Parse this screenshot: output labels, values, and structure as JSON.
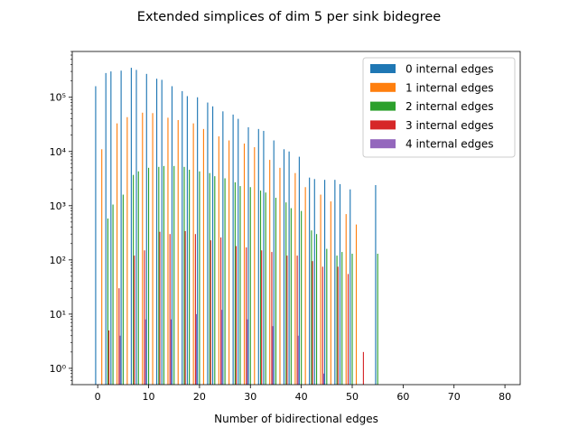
{
  "chart_data": {
    "type": "bar",
    "title": "Extended simplices of dim 5 per sink bidegree",
    "xlabel": "Number of bidirectional edges",
    "ylabel": "",
    "yscale": "log",
    "xlim": [
      -5,
      83
    ],
    "ylim": [
      0.5,
      700000
    ],
    "xticks": [
      0,
      10,
      20,
      30,
      40,
      50,
      60,
      70,
      80
    ],
    "xtick_labels": [
      "0",
      "10",
      "20",
      "30",
      "40",
      "50",
      "60",
      "70",
      "80"
    ],
    "yticks": [
      1,
      10,
      100,
      1000,
      10000,
      100000
    ],
    "ytick_labels": [
      "10⁰",
      "10¹",
      "10²",
      "10³",
      "10⁴",
      "10⁵"
    ],
    "legend_position": "top-right",
    "grid": false,
    "series": [
      {
        "name": "0 internal edges",
        "color": "#1f77b4",
        "x": [
          0,
          2,
          3,
          5,
          7,
          8,
          10,
          12,
          13,
          15,
          17,
          18,
          20,
          22,
          23,
          25,
          27,
          28,
          30,
          32,
          33,
          35,
          37,
          38,
          40,
          42,
          43,
          45,
          47,
          48,
          50,
          55
        ],
        "values": [
          160000,
          280000,
          300000,
          310000,
          350000,
          320000,
          270000,
          220000,
          210000,
          160000,
          130000,
          105000,
          100000,
          80000,
          68000,
          55000,
          48000,
          40000,
          28000,
          26000,
          24000,
          16000,
          11000,
          10000,
          8000,
          3300,
          3100,
          3000,
          3000,
          2500,
          2000,
          2400
        ]
      },
      {
        "name": "1 internal edges",
        "color": "#ff7f0e",
        "x": [
          1,
          4,
          6,
          9,
          11,
          14,
          16,
          19,
          21,
          24,
          26,
          29,
          31,
          34,
          36,
          39,
          41,
          44,
          46,
          49,
          51
        ],
        "values": [
          11000,
          33000,
          43000,
          52000,
          51000,
          42000,
          38000,
          33000,
          26000,
          19000,
          16000,
          14000,
          12000,
          7000,
          5000,
          4000,
          2200,
          1600,
          1200,
          700,
          450
        ]
      },
      {
        "name": "2 internal edges",
        "color": "#2ca02c",
        "x": [
          2,
          3,
          5,
          7,
          8,
          10,
          12,
          13,
          15,
          17,
          18,
          20,
          22,
          23,
          25,
          27,
          28,
          30,
          32,
          33,
          35,
          37,
          38,
          40,
          42,
          43,
          45,
          47,
          48,
          50,
          55
        ],
        "values": [
          580,
          1050,
          1600,
          3700,
          4300,
          5000,
          5200,
          5400,
          5400,
          5200,
          4600,
          4300,
          4000,
          3500,
          3200,
          2700,
          2300,
          2200,
          1900,
          1750,
          1400,
          1150,
          900,
          800,
          350,
          300,
          160,
          120,
          140,
          130,
          130
        ]
      },
      {
        "name": "3 internal edges",
        "color": "#d62728",
        "x": [
          2,
          4,
          7,
          9,
          12,
          14,
          17,
          19,
          22,
          24,
          27,
          29,
          32,
          34,
          37,
          39,
          42,
          44,
          47,
          49,
          52
        ],
        "values": [
          5,
          30,
          120,
          150,
          330,
          300,
          340,
          300,
          230,
          260,
          180,
          170,
          150,
          140,
          120,
          120,
          95,
          75,
          75,
          55,
          2
        ]
      },
      {
        "name": "4 internal edges",
        "color": "#9467bd",
        "x": [
          4,
          9,
          14,
          19,
          24,
          29,
          34,
          39,
          44
        ],
        "values": [
          4,
          8,
          8,
          10,
          12,
          8,
          6,
          4,
          0.8
        ]
      }
    ]
  }
}
